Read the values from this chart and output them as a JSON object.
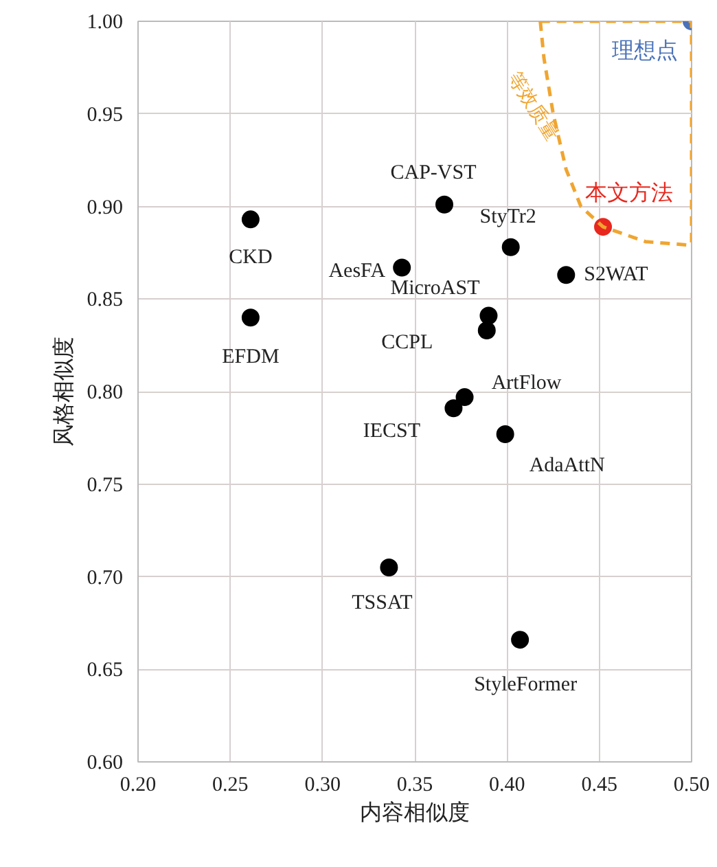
{
  "chart_data": {
    "type": "scatter",
    "xlabel": "内容相似度",
    "ylabel": "风格相似度",
    "xlim": [
      0.2,
      0.5
    ],
    "ylim": [
      0.6,
      1.0
    ],
    "xticks": [
      {
        "value": 0.2,
        "label": "0.20"
      },
      {
        "value": 0.25,
        "label": "0.25"
      },
      {
        "value": 0.3,
        "label": "0.30"
      },
      {
        "value": 0.35,
        "label": "0.35"
      },
      {
        "value": 0.4,
        "label": "0.40"
      },
      {
        "value": 0.45,
        "label": "0.45"
      },
      {
        "value": 0.5,
        "label": "0.50"
      }
    ],
    "yticks": [
      {
        "value": 0.6,
        "label": "0.60"
      },
      {
        "value": 0.65,
        "label": "0.65"
      },
      {
        "value": 0.7,
        "label": "0.70"
      },
      {
        "value": 0.75,
        "label": "0.75"
      },
      {
        "value": 0.8,
        "label": "0.80"
      },
      {
        "value": 0.85,
        "label": "0.85"
      },
      {
        "value": 0.9,
        "label": "0.90"
      },
      {
        "value": 0.95,
        "label": "0.95"
      },
      {
        "value": 1.0,
        "label": "1.00"
      }
    ],
    "grid": true,
    "marker": "circle",
    "series": [
      {
        "color": "#000000",
        "x": [
          0.261,
          0.261,
          0.366,
          0.343,
          0.402,
          0.432,
          0.39,
          0.389,
          0.377,
          0.371,
          0.399,
          0.336,
          0.407
        ],
        "values": [
          0.893,
          0.84,
          0.901,
          0.867,
          0.878,
          0.863,
          0.841,
          0.833,
          0.797,
          0.791,
          0.777,
          0.705,
          0.666
        ]
      },
      {
        "name": "本文方法",
        "color": "#e8281e",
        "x": [
          0.452
        ],
        "values": [
          0.889
        ]
      },
      {
        "name": "理想点",
        "color": "#4a72b8",
        "x": [
          0.5
        ],
        "values": [
          1.0
        ]
      },
      {
        "name": "等效质量",
        "type": "line",
        "marker": "none",
        "line_style": "dashed",
        "color": "#f0a530",
        "x": [
          0.418,
          0.42,
          0.425,
          0.432,
          0.44,
          0.452,
          0.475,
          0.5
        ],
        "values": [
          1.0,
          0.98,
          0.95,
          0.92,
          0.9,
          0.889,
          0.881,
          0.879
        ]
      },
      {
        "type": "line",
        "marker": "none",
        "line_style": "dashed",
        "color": "#f0a530",
        "x": [
          0.418,
          0.5,
          0.5
        ],
        "values": [
          1.0,
          1.0,
          0.879
        ]
      }
    ],
    "annotations": [
      {
        "text": "CKD",
        "x": 0.261,
        "y": 0.893
      },
      {
        "text": "EFDM",
        "x": 0.261,
        "y": 0.84
      },
      {
        "text": "CAP-VST",
        "x": 0.366,
        "y": 0.901
      },
      {
        "text": "AesFA",
        "x": 0.343,
        "y": 0.867
      },
      {
        "text": "StyTr2",
        "x": 0.402,
        "y": 0.878
      },
      {
        "text": "S2WAT",
        "x": 0.432,
        "y": 0.863
      },
      {
        "text": "MicroAST",
        "x": 0.39,
        "y": 0.841
      },
      {
        "text": "CCPL",
        "x": 0.389,
        "y": 0.833
      },
      {
        "text": "ArtFlow",
        "x": 0.377,
        "y": 0.797
      },
      {
        "text": "IECST",
        "x": 0.371,
        "y": 0.791
      },
      {
        "text": "AdaAttN",
        "x": 0.399,
        "y": 0.777
      },
      {
        "text": "TSSAT",
        "x": 0.336,
        "y": 0.705
      },
      {
        "text": "StyleFormer",
        "x": 0.407,
        "y": 0.666
      }
    ]
  }
}
